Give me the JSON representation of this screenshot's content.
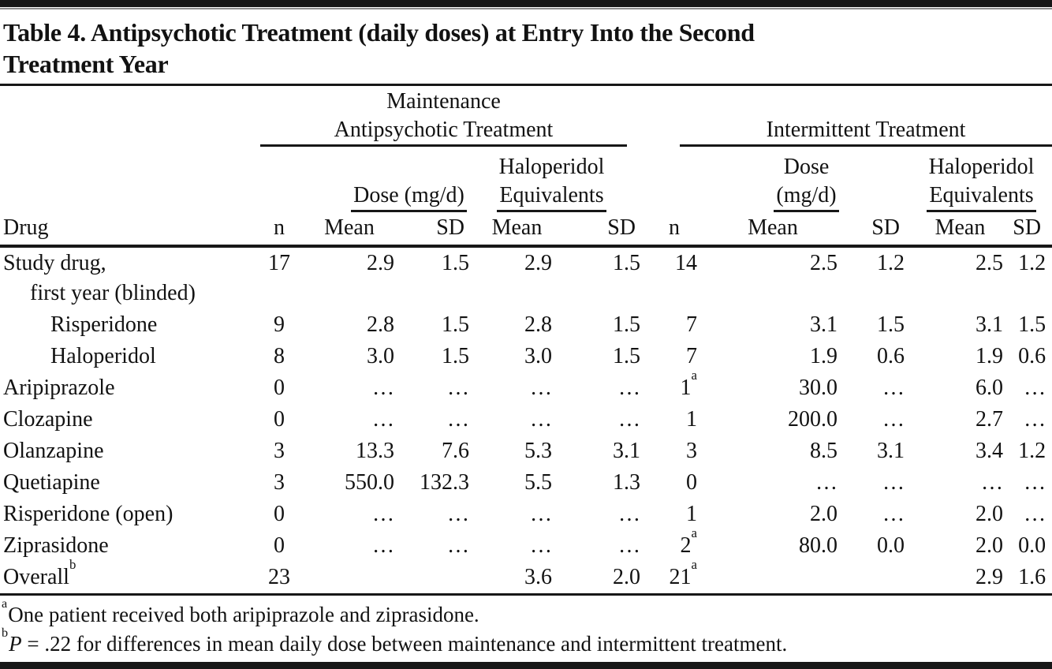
{
  "page": {
    "title_line1": "Table 4. Antipsychotic Treatment (daily doses) at Entry Into the Second",
    "title_line2": "Treatment Year"
  },
  "table": {
    "groups": {
      "maintenance_line1": "Maintenance",
      "maintenance_line2": "Antipsychotic Treatment",
      "intermittent": "Intermittent Treatment"
    },
    "subheaders": {
      "maint_dose": "Dose (mg/d)",
      "maint_heq_line1": "Haloperidol",
      "maint_heq_line2": "Equivalents",
      "int_dose_line1": "Dose",
      "int_dose_line2": "(mg/d)",
      "int_heq_line1": "Haloperidol",
      "int_heq_line2": "Equivalents"
    },
    "columns": {
      "drug": "Drug",
      "n": "n",
      "mean": "Mean",
      "sd": "SD"
    },
    "rows": [
      {
        "label": "Study drug,",
        "label2": "first year (blinded)",
        "indent": 0,
        "cells": [
          "17",
          "2.9",
          "1.5",
          "2.9",
          "1.5",
          "14",
          "2.5",
          "1.2",
          "2.5",
          "1.2"
        ]
      },
      {
        "label": "Risperidone",
        "indent": 2,
        "cells": [
          "9",
          "2.8",
          "1.5",
          "2.8",
          "1.5",
          "7",
          "3.1",
          "1.5",
          "3.1",
          "1.5"
        ]
      },
      {
        "label": "Haloperidol",
        "indent": 2,
        "cells": [
          "8",
          "3.0",
          "1.5",
          "3.0",
          "1.5",
          "7",
          "1.9",
          "0.6",
          "1.9",
          "0.6"
        ]
      },
      {
        "label": "Aripiprazole",
        "indent": 0,
        "cells": [
          "0",
          "…",
          "…",
          "…",
          "…",
          "1^a",
          "30.0",
          "…",
          "6.0",
          "…"
        ]
      },
      {
        "label": "Clozapine",
        "indent": 0,
        "cells": [
          "0",
          "…",
          "…",
          "…",
          "…",
          "1",
          "200.0",
          "…",
          "2.7",
          "…"
        ]
      },
      {
        "label": "Olanzapine",
        "indent": 0,
        "cells": [
          "3",
          "13.3",
          "7.6",
          "5.3",
          "3.1",
          "3",
          "8.5",
          "3.1",
          "3.4",
          "1.2"
        ]
      },
      {
        "label": "Quetiapine",
        "indent": 0,
        "cells": [
          "3",
          "550.0",
          "132.3",
          "5.5",
          "1.3",
          "0",
          "…",
          "…",
          "…",
          "…"
        ]
      },
      {
        "label": "Risperidone (open)",
        "indent": 0,
        "cells": [
          "0",
          "…",
          "…",
          "…",
          "…",
          "1",
          "2.0",
          "…",
          "2.0",
          "…"
        ]
      },
      {
        "label": "Ziprasidone",
        "indent": 0,
        "cells": [
          "0",
          "…",
          "…",
          "…",
          "…",
          "2^a",
          "80.0",
          "0.0",
          "2.0",
          "0.0"
        ]
      },
      {
        "label": "Overall^b",
        "indent": 0,
        "cells": [
          "23",
          "",
          "",
          "3.6",
          "2.0",
          "21^a",
          "",
          "",
          "2.9",
          "1.6"
        ]
      }
    ]
  },
  "footnotes": [
    {
      "marker": "a",
      "text": "One patient received both aripiprazole and ziprasidone."
    },
    {
      "marker": "b",
      "italic_lead": "P",
      "text": " = .22 for differences in mean daily dose between maintenance and intermittent treatment."
    }
  ]
}
